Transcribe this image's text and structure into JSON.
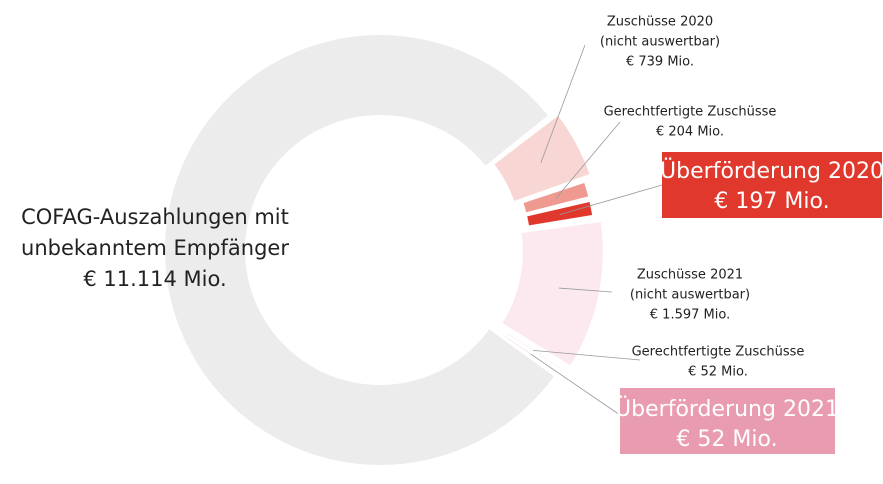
{
  "chart_data": {
    "type": "donut",
    "categories": [
      [
        "COFAG-Auszahlungen mit",
        "unbekanntem Empfänger"
      ],
      [
        "Zuschüsse 2020",
        "(nicht auswertbar)"
      ],
      [
        "Gerechtfertigte Zuschüsse"
      ],
      [
        "Überförderung 2020"
      ],
      [
        "Zuschüsse 2021",
        "(nicht auswertbar)"
      ],
      [
        "Gerechtfertigte Zuschüsse"
      ],
      [
        "Überförderung 2021"
      ]
    ],
    "values": [
      11114,
      739,
      204,
      197,
      1597,
      52,
      52
    ],
    "value_labels": [
      "€ 11.114 Mio.",
      "€ 739 Mio.",
      "€ 204 Mio.",
      "€ 197 Mio.",
      "€ 1.597 Mio.",
      "€ 52 Mio.",
      "€ 52 Mio."
    ],
    "colors": [
      "#ececec",
      "#f8d6d4",
      "#ee9a90",
      "#e0382c",
      "#fbe9ef",
      "#f2c2cc",
      "#e99cb0"
    ]
  }
}
